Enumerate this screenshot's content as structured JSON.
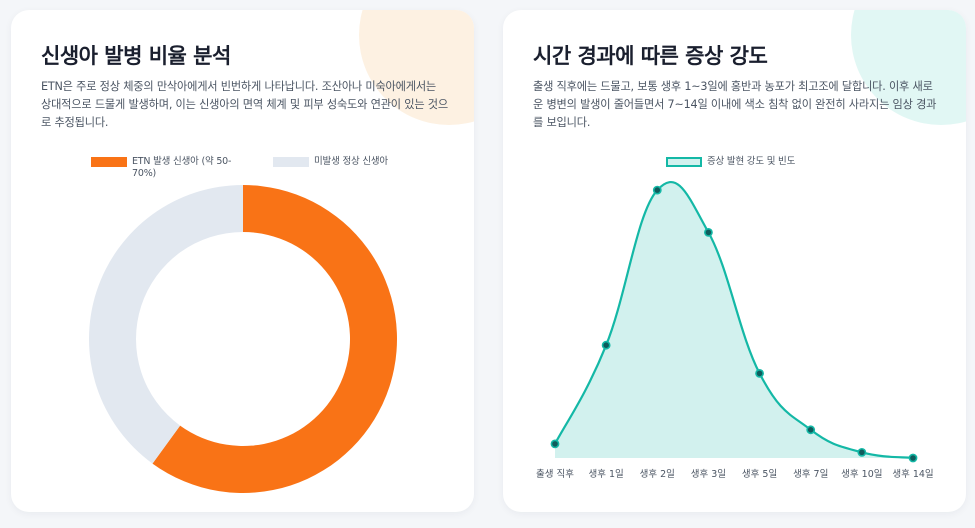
{
  "left_card": {
    "title": "신생아 발병 비율 분석",
    "description": "ETN은 주로 정상 체중의 만삭아에게서 빈번하게 나타납니다. 조산아나 미숙아에게서는 상대적으로 드물게 발생하며, 이는 신생아의 면역 체계 및 피부 성숙도와 연관이 있는 것으로 추정됩니다."
  },
  "right_card": {
    "title": "시간 경과에 따른 증상 강도",
    "description": "출생 직후에는 드물고, 보통 생후 1~3일에 홍반과 농포가 최고조에 달합니다. 이후 새로운 병변의 발생이 줄어들면서 7~14일 이내에 색소 침착 없이 완전히 사라지는 임상 경과를 보입니다."
  },
  "chart_data": [
    {
      "type": "pie",
      "subtype": "doughnut",
      "categories": [
        "ETN 발생 신생아 (약 50-70%)",
        "미발생 정상 신생아"
      ],
      "values": [
        60,
        40
      ],
      "colors": [
        "#f97316",
        "#e2e8f0"
      ],
      "legend": "top"
    },
    {
      "type": "area",
      "categories": [
        "출생 직후",
        "생후 1일",
        "생후 2일",
        "생후 3일",
        "생후 5일",
        "생후 7일",
        "생후 10일",
        "생후 14일"
      ],
      "series": [
        {
          "name": "증상 발현 강도 및 빈도",
          "values": [
            5,
            40,
            95,
            80,
            30,
            10,
            2,
            0
          ]
        }
      ],
      "ylim": [
        0,
        100
      ],
      "line_color": "#14b8a6",
      "fill_color": "#d2f1ee",
      "point_color": "#0f5c5c",
      "grid": false,
      "legend": "top"
    }
  ]
}
